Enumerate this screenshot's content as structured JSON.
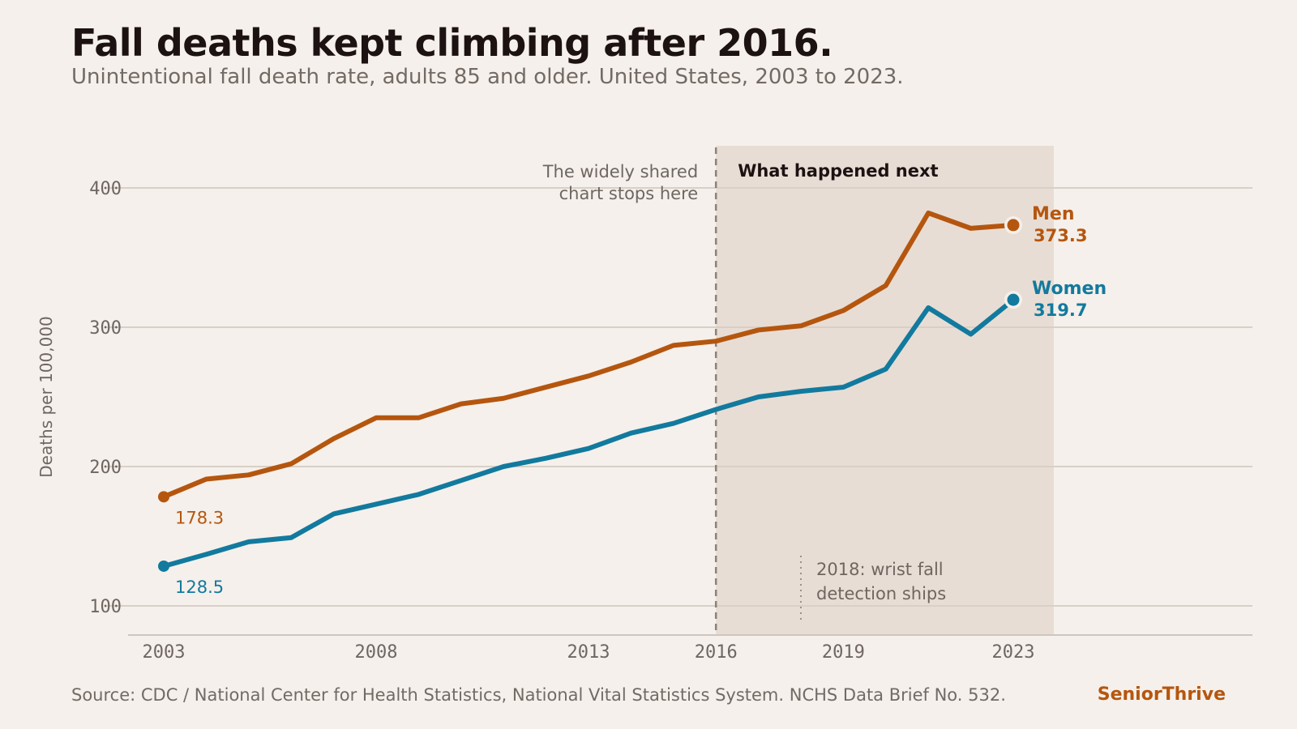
{
  "header": {
    "title": "Fall deaths kept climbing after 2016.",
    "subtitle": "Unintentional fall death rate, adults 85 and older. United States, 2003 to 2023."
  },
  "footer": {
    "source": "Source: CDC / National Center for Health Statistics, National Vital Statistics System. NCHS Data Brief No. 532.",
    "brand": "SeniorThrive"
  },
  "chart_data": {
    "type": "line",
    "title": "Fall deaths kept climbing after 2016.",
    "subtitle": "Unintentional fall death rate, adults 85 and older. United States, 2003 to 2023.",
    "xlabel": "",
    "ylabel": "Deaths per 100,000",
    "x": [
      2003,
      2004,
      2005,
      2006,
      2007,
      2008,
      2009,
      2010,
      2011,
      2012,
      2013,
      2014,
      2015,
      2016,
      2017,
      2018,
      2019,
      2020,
      2021,
      2022,
      2023
    ],
    "x_ticks": [
      "2003",
      "2008",
      "2013",
      "2016",
      "2019",
      "2023"
    ],
    "y_ticks": [
      "100",
      "200",
      "300",
      "400"
    ],
    "series": [
      {
        "name": "Men",
        "color": "#b5560f",
        "values": [
          178.3,
          191,
          194,
          202,
          220,
          235,
          235,
          245,
          249,
          257,
          265,
          275,
          287,
          290,
          298,
          301,
          312,
          330,
          382,
          371,
          373.3
        ],
        "start_label": "178.3",
        "end_label": "373.3"
      },
      {
        "name": "Women",
        "color": "#127a9e",
        "values": [
          128.5,
          137,
          146,
          149,
          166,
          173,
          180,
          190,
          200,
          206,
          213,
          224,
          231,
          241,
          250,
          254,
          257,
          270,
          314,
          295,
          319.7
        ],
        "start_label": "128.5",
        "end_label": "319.7"
      }
    ],
    "annotations": {
      "cutoff_year": 2016,
      "cutoff_label_lines": [
        "The widely shared",
        "chart stops here"
      ],
      "shaded_label": "What happened next",
      "event_year": 2018,
      "event_label_lines": [
        "2018: wrist fall",
        "detection ships"
      ]
    },
    "grid": true,
    "legend": "direct labels at line ends"
  }
}
